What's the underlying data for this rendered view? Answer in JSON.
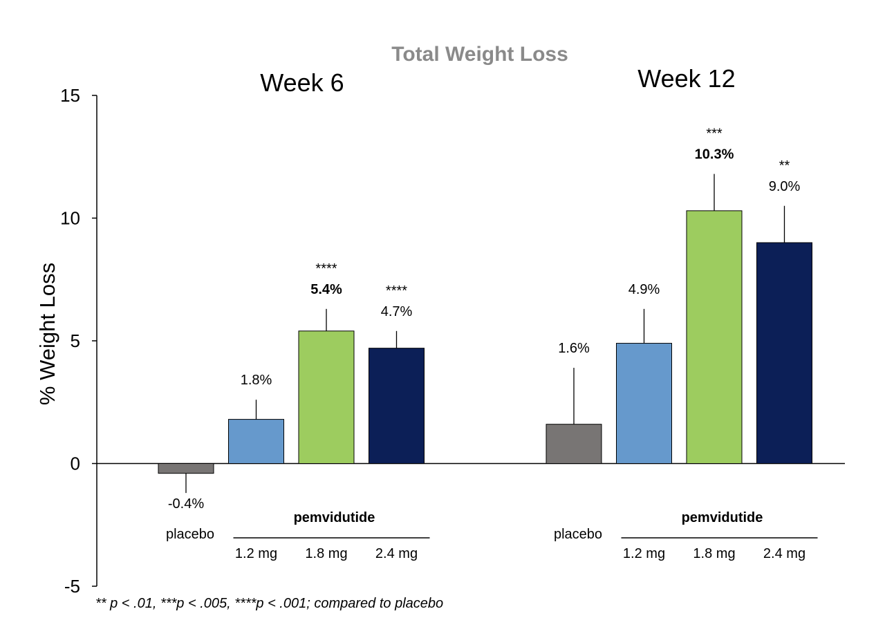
{
  "chart_data": {
    "type": "bar",
    "title": "Total Weight Loss",
    "ylabel": "% Weight Loss",
    "ylim": [
      -5,
      15
    ],
    "yticks": [
      15,
      10,
      5,
      0,
      -5
    ],
    "group_label": "pemvidutide",
    "footnote": "** p <  .01, ***p < .005, ****p < .001; compared to placebo",
    "panels": [
      {
        "name": "Week 6",
        "categories": [
          "placebo",
          "1.2 mg",
          "1.8 mg",
          "2.4 mg"
        ],
        "values": [
          -0.4,
          1.8,
          5.4,
          4.7
        ],
        "error_tops": [
          -1.2,
          2.6,
          6.3,
          5.4
        ],
        "labels": [
          "-0.4%",
          "1.8%",
          "5.4%",
          "4.7%"
        ],
        "bold": [
          false,
          false,
          true,
          false
        ],
        "significance": [
          "",
          "",
          "****",
          "****"
        ]
      },
      {
        "name": "Week 12",
        "categories": [
          "placebo",
          "1.2 mg",
          "1.8 mg",
          "2.4 mg"
        ],
        "values": [
          1.6,
          4.9,
          10.3,
          9.0
        ],
        "error_tops": [
          3.9,
          6.3,
          11.8,
          10.5
        ],
        "labels": [
          "1.6%",
          "4.9%",
          "10.3%",
          "9.0%"
        ],
        "bold": [
          false,
          false,
          true,
          false
        ],
        "significance": [
          "",
          "",
          "***",
          "**"
        ]
      }
    ],
    "colors": [
      "#787574",
      "#6699cc",
      "#9dcc5f",
      "#0c1f57"
    ]
  }
}
